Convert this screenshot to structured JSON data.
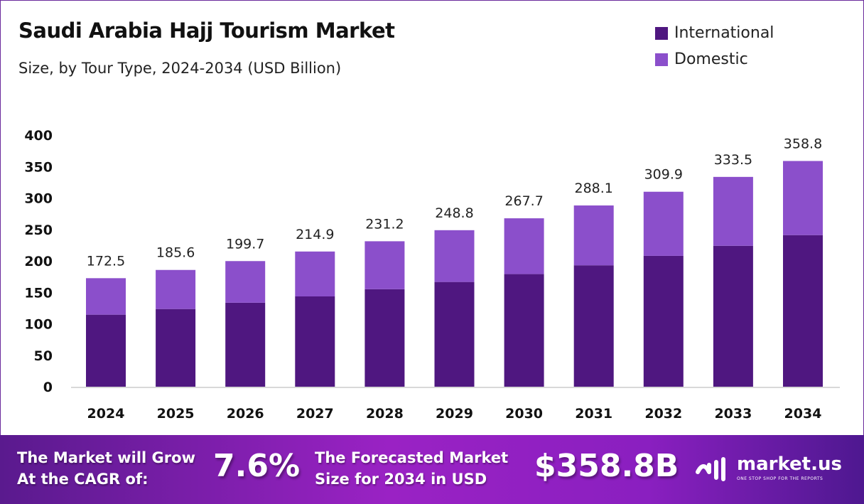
{
  "colors": {
    "international": "#4f1780",
    "domestic": "#8b4fcb"
  },
  "chart_data": {
    "type": "bar",
    "stacked": true,
    "title": "Saudi Arabia Hajj Tourism Market",
    "subtitle": "Size, by Tour Type, 2024-2034 (USD Billion)",
    "categories": [
      "2024",
      "2025",
      "2026",
      "2027",
      "2028",
      "2029",
      "2030",
      "2031",
      "2032",
      "2033",
      "2034"
    ],
    "series": [
      {
        "name": "International",
        "values": [
          114.5,
          123.5,
          133.5,
          143.5,
          155,
          166.5,
          179,
          193,
          208,
          224,
          241
        ]
      },
      {
        "name": "Domestic",
        "values": [
          58.0,
          62.1,
          66.2,
          71.4,
          76.2,
          82.3,
          88.7,
          95.1,
          101.9,
          109.5,
          117.8
        ]
      }
    ],
    "totals": [
      "172.5",
      "185.6",
      "199.7",
      "214.9",
      "231.2",
      "248.8",
      "267.7",
      "288.1",
      "309.9",
      "333.5",
      "358.8"
    ],
    "yticks": [
      0,
      50,
      100,
      150,
      200,
      250,
      300,
      350,
      400
    ],
    "ylim": [
      0,
      400
    ],
    "legend": "top-right",
    "grid": false
  },
  "footer": {
    "cagr_label_1": "The Market will Grow",
    "cagr_label_2": "At the CAGR of:",
    "cagr_value": "7.6%",
    "forecast_label_1": "The Forecasted Market",
    "forecast_label_2": "Size for 2034 in USD",
    "forecast_value": "$358.8B",
    "logo_name": "market.us",
    "logo_tagline": "ONE STOP SHOP FOR THE REPORTS"
  }
}
